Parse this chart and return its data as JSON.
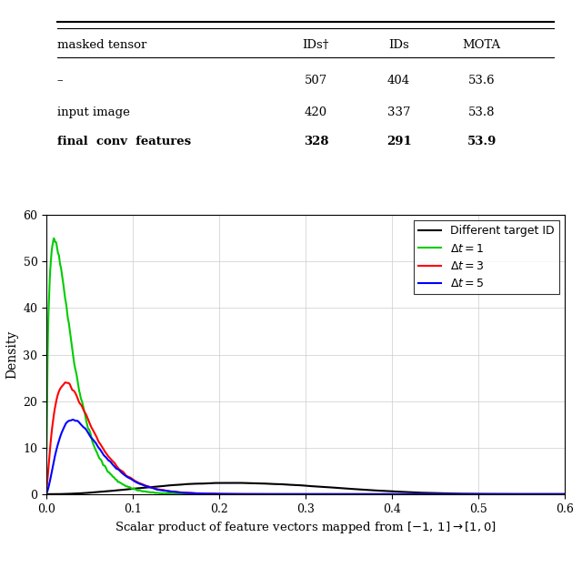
{
  "table": {
    "headers": [
      "masked tensor",
      "IDs†",
      "IDs",
      "MOTA"
    ],
    "rows": [
      [
        "–",
        "507",
        "404",
        "53.6",
        false
      ],
      [
        "input image",
        "420",
        "337",
        "53.8",
        false
      ],
      [
        "final  conv  features",
        "328",
        "291",
        "53.9",
        true
      ]
    ]
  },
  "plot": {
    "xlabel": "Scalar product of feature vectors mapped from $[-1,\\,1] \\rightarrow [1,0]$",
    "ylabel": "Density",
    "xlim": [
      0,
      0.6
    ],
    "ylim": [
      0,
      60
    ],
    "xticks": [
      0.0,
      0.1,
      0.2,
      0.3,
      0.4,
      0.5,
      0.6
    ],
    "yticks": [
      0,
      10,
      20,
      30,
      40,
      50,
      60
    ],
    "grid": true,
    "legend": [
      {
        "label": "Different target ID",
        "color": "#000000",
        "lw": 1.5
      },
      {
        "label": "$\\Delta t = 1$",
        "color": "#00cc00",
        "lw": 1.5
      },
      {
        "label": "$\\Delta t = 3$",
        "color": "#ff0000",
        "lw": 1.5
      },
      {
        "label": "$\\Delta t = 5$",
        "color": "#0000ff",
        "lw": 1.5
      }
    ]
  },
  "background_color": "#ffffff"
}
